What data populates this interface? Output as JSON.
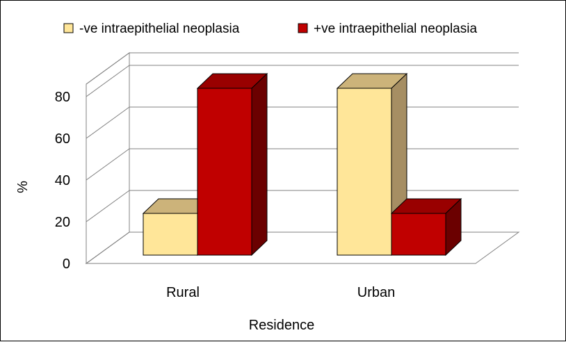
{
  "chart_data": {
    "type": "bar",
    "subtype": "3d-clustered-column",
    "categories": [
      "Rural",
      "Urban"
    ],
    "series": [
      {
        "name": "-ve intraepithelial neoplasia",
        "values": [
          20,
          80
        ],
        "color": "#FFE699",
        "side_color": "#A68E63",
        "top_color": "#CCB37A"
      },
      {
        "name": "+ve intraepithelial neoplasia",
        "values": [
          80,
          20
        ],
        "color": "#C00000",
        "side_color": "#6B0000",
        "top_color": "#990000"
      }
    ],
    "title": "",
    "xlabel": "Residence",
    "ylabel": "%",
    "ylim": [
      0,
      80
    ],
    "yticks": [
      0,
      20,
      40,
      60,
      80
    ],
    "grid": true,
    "legend_position": "top"
  }
}
